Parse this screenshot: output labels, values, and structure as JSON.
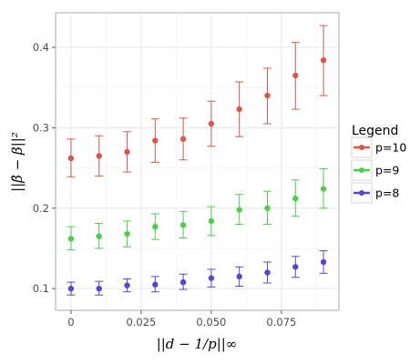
{
  "chart_data": {
    "type": "scatter",
    "title": "",
    "xlabel": "||d − 1/p||∞",
    "ylabel": "||β̂ − β||²",
    "xlim": [
      -0.0055,
      0.0955
    ],
    "ylim": [
      0.073,
      0.443
    ],
    "x_ticks": [
      0,
      0.025,
      0.05,
      0.075
    ],
    "x_tick_labels": [
      "0",
      "0.025",
      "0.050",
      "0.075"
    ],
    "y_ticks": [
      0.1,
      0.2,
      0.3,
      0.4
    ],
    "y_tick_labels": [
      "0.1",
      "0.2",
      "0.3",
      "0.4"
    ],
    "grid": true,
    "legend": {
      "title": "Legend",
      "placement": "right"
    },
    "x": [
      0,
      0.01,
      0.02,
      0.03,
      0.04,
      0.05,
      0.06,
      0.07,
      0.08,
      0.09
    ],
    "series": [
      {
        "name": "p=10",
        "color": "#d9574a",
        "values": [
          0.262,
          0.265,
          0.27,
          0.284,
          0.286,
          0.305,
          0.323,
          0.34,
          0.365,
          0.384
        ],
        "lower": [
          0.239,
          0.24,
          0.245,
          0.257,
          0.26,
          0.277,
          0.289,
          0.305,
          0.323,
          0.34
        ],
        "upper": [
          0.286,
          0.29,
          0.295,
          0.311,
          0.312,
          0.333,
          0.357,
          0.374,
          0.406,
          0.427
        ]
      },
      {
        "name": "p=9",
        "color": "#4ccd4c",
        "values": [
          0.162,
          0.165,
          0.168,
          0.177,
          0.179,
          0.184,
          0.198,
          0.2,
          0.212,
          0.224
        ],
        "lower": [
          0.148,
          0.15,
          0.152,
          0.161,
          0.163,
          0.166,
          0.18,
          0.18,
          0.19,
          0.2
        ],
        "upper": [
          0.177,
          0.181,
          0.184,
          0.193,
          0.196,
          0.202,
          0.217,
          0.221,
          0.235,
          0.249
        ]
      },
      {
        "name": "p=8",
        "color": "#5548cf",
        "values": [
          0.1,
          0.1,
          0.104,
          0.105,
          0.108,
          0.113,
          0.115,
          0.12,
          0.127,
          0.133
        ],
        "lower": [
          0.092,
          0.092,
          0.096,
          0.096,
          0.099,
          0.102,
          0.103,
          0.107,
          0.114,
          0.119
        ],
        "upper": [
          0.108,
          0.109,
          0.112,
          0.115,
          0.118,
          0.124,
          0.127,
          0.133,
          0.14,
          0.147
        ]
      }
    ]
  }
}
